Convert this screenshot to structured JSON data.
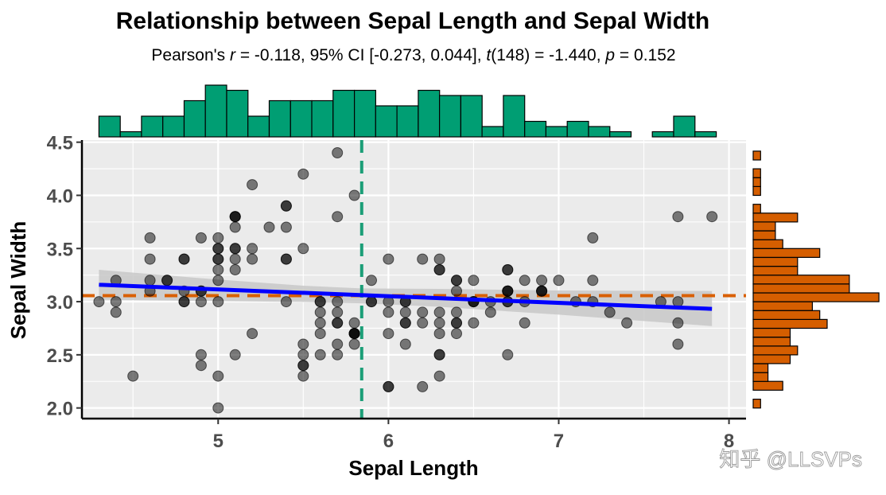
{
  "watermark": "知乎 @LLSVPs",
  "colors": {
    "panel": "#ebebeb",
    "grid": "#ffffff",
    "points": "#000000",
    "regression_line": "#0000ff",
    "confidence_band": "#c8c8c8",
    "mean_x_line": "#1b9e77",
    "mean_y_line": "#d95f02",
    "x_histogram": "#009e73",
    "y_histogram": "#d55e00"
  },
  "chart_data": {
    "type": "scatter",
    "title": "Relationship between Sepal Length and Sepal Width",
    "subtitle_parts": [
      {
        "text": "Pearson's ",
        "italic": false
      },
      {
        "text": "r",
        "italic": true
      },
      {
        "text": " = -0.118, 95% CI [-0.273, 0.044], ",
        "italic": false
      },
      {
        "text": "t",
        "italic": true
      },
      {
        "text": "(148) = -1.440, ",
        "italic": false
      },
      {
        "text": "p",
        "italic": true
      },
      {
        "text": "  = 0.152",
        "italic": false
      }
    ],
    "xlabel": "Sepal Length",
    "ylabel": "Sepal Width",
    "xlim": [
      4.2,
      8.1
    ],
    "ylim": [
      1.9,
      4.52
    ],
    "xticks": [
      5,
      6,
      7,
      8
    ],
    "xtick_labels": [
      "5",
      "6",
      "7",
      "8"
    ],
    "yticks": [
      2.0,
      2.5,
      3.0,
      3.5,
      4.0,
      4.5
    ],
    "ytick_labels": [
      "2.0",
      "2.5",
      "3.0",
      "3.5",
      "4.0",
      "4.5"
    ],
    "grid": true,
    "points": [
      [
        5.1,
        3.5
      ],
      [
        4.9,
        3.0
      ],
      [
        4.7,
        3.2
      ],
      [
        4.6,
        3.1
      ],
      [
        5.0,
        3.6
      ],
      [
        5.4,
        3.9
      ],
      [
        4.6,
        3.4
      ],
      [
        5.0,
        3.4
      ],
      [
        4.4,
        2.9
      ],
      [
        4.9,
        3.1
      ],
      [
        5.4,
        3.7
      ],
      [
        4.8,
        3.4
      ],
      [
        4.8,
        3.0
      ],
      [
        4.3,
        3.0
      ],
      [
        5.8,
        4.0
      ],
      [
        5.7,
        4.4
      ],
      [
        5.4,
        3.9
      ],
      [
        5.1,
        3.5
      ],
      [
        5.7,
        3.8
      ],
      [
        5.1,
        3.8
      ],
      [
        5.4,
        3.4
      ],
      [
        5.1,
        3.7
      ],
      [
        4.6,
        3.6
      ],
      [
        5.1,
        3.3
      ],
      [
        4.8,
        3.4
      ],
      [
        5.0,
        3.0
      ],
      [
        5.0,
        3.4
      ],
      [
        5.2,
        3.5
      ],
      [
        5.2,
        3.4
      ],
      [
        4.7,
        3.2
      ],
      [
        4.8,
        3.1
      ],
      [
        5.4,
        3.4
      ],
      [
        5.2,
        4.1
      ],
      [
        5.5,
        4.2
      ],
      [
        4.9,
        3.1
      ],
      [
        5.0,
        3.2
      ],
      [
        5.5,
        3.5
      ],
      [
        4.9,
        3.6
      ],
      [
        4.4,
        3.0
      ],
      [
        5.1,
        3.4
      ],
      [
        5.0,
        3.5
      ],
      [
        4.5,
        2.3
      ],
      [
        4.4,
        3.2
      ],
      [
        5.0,
        3.5
      ],
      [
        5.1,
        3.8
      ],
      [
        4.8,
        3.0
      ],
      [
        5.1,
        3.8
      ],
      [
        4.6,
        3.2
      ],
      [
        5.3,
        3.7
      ],
      [
        5.0,
        3.3
      ],
      [
        7.0,
        3.2
      ],
      [
        6.4,
        3.2
      ],
      [
        6.9,
        3.1
      ],
      [
        5.5,
        2.3
      ],
      [
        6.5,
        2.8
      ],
      [
        5.7,
        2.8
      ],
      [
        6.3,
        3.3
      ],
      [
        4.9,
        2.4
      ],
      [
        6.6,
        2.9
      ],
      [
        5.2,
        2.7
      ],
      [
        5.0,
        2.0
      ],
      [
        5.9,
        3.0
      ],
      [
        6.0,
        2.2
      ],
      [
        6.1,
        2.9
      ],
      [
        5.6,
        2.9
      ],
      [
        6.7,
        3.1
      ],
      [
        5.6,
        3.0
      ],
      [
        5.8,
        2.7
      ],
      [
        6.2,
        2.2
      ],
      [
        5.6,
        2.5
      ],
      [
        5.9,
        3.2
      ],
      [
        6.1,
        2.8
      ],
      [
        6.3,
        2.5
      ],
      [
        6.1,
        2.8
      ],
      [
        6.4,
        2.9
      ],
      [
        6.6,
        3.0
      ],
      [
        6.8,
        2.8
      ],
      [
        6.7,
        3.0
      ],
      [
        6.0,
        2.9
      ],
      [
        5.7,
        2.6
      ],
      [
        5.5,
        2.4
      ],
      [
        5.5,
        2.4
      ],
      [
        5.8,
        2.7
      ],
      [
        6.0,
        2.7
      ],
      [
        5.4,
        3.0
      ],
      [
        6.0,
        3.4
      ],
      [
        6.7,
        3.1
      ],
      [
        6.3,
        2.3
      ],
      [
        5.6,
        3.0
      ],
      [
        5.5,
        2.5
      ],
      [
        5.5,
        2.6
      ],
      [
        6.1,
        3.0
      ],
      [
        5.8,
        2.6
      ],
      [
        5.0,
        2.3
      ],
      [
        5.6,
        2.7
      ],
      [
        5.7,
        3.0
      ],
      [
        5.7,
        2.9
      ],
      [
        6.2,
        2.9
      ],
      [
        5.1,
        2.5
      ],
      [
        5.7,
        2.8
      ],
      [
        6.3,
        3.3
      ],
      [
        5.8,
        2.7
      ],
      [
        7.1,
        3.0
      ],
      [
        6.3,
        2.9
      ],
      [
        6.5,
        3.0
      ],
      [
        7.6,
        3.0
      ],
      [
        4.9,
        2.5
      ],
      [
        7.3,
        2.9
      ],
      [
        6.7,
        2.5
      ],
      [
        7.2,
        3.6
      ],
      [
        6.5,
        3.2
      ],
      [
        6.4,
        2.7
      ],
      [
        6.8,
        3.0
      ],
      [
        5.7,
        2.5
      ],
      [
        5.8,
        2.8
      ],
      [
        6.4,
        3.2
      ],
      [
        6.5,
        3.0
      ],
      [
        7.7,
        3.8
      ],
      [
        7.7,
        2.6
      ],
      [
        6.0,
        2.2
      ],
      [
        6.9,
        3.2
      ],
      [
        5.6,
        2.8
      ],
      [
        7.7,
        2.8
      ],
      [
        6.3,
        2.7
      ],
      [
        6.7,
        3.3
      ],
      [
        7.2,
        3.2
      ],
      [
        6.2,
        2.8
      ],
      [
        6.1,
        3.0
      ],
      [
        6.4,
        2.8
      ],
      [
        7.2,
        3.0
      ],
      [
        7.4,
        2.8
      ],
      [
        7.9,
        3.8
      ],
      [
        6.4,
        2.8
      ],
      [
        6.3,
        2.8
      ],
      [
        6.1,
        2.6
      ],
      [
        7.7,
        3.0
      ],
      [
        6.3,
        3.4
      ],
      [
        6.4,
        3.1
      ],
      [
        6.0,
        3.0
      ],
      [
        6.9,
        3.1
      ],
      [
        6.7,
        3.1
      ],
      [
        6.9,
        3.1
      ],
      [
        5.8,
        2.7
      ],
      [
        6.8,
        3.2
      ],
      [
        6.7,
        3.3
      ],
      [
        6.7,
        3.0
      ],
      [
        6.3,
        2.5
      ],
      [
        6.5,
        3.0
      ],
      [
        6.2,
        3.4
      ],
      [
        5.9,
        3.0
      ]
    ],
    "regression": {
      "x": [
        4.3,
        7.9
      ],
      "y": [
        3.159,
        2.932
      ]
    },
    "confidence_band": {
      "x": [
        4.3,
        5.0,
        5.5,
        5.84,
        6.3,
        7.0,
        7.9
      ],
      "lower": [
        3.018,
        3.005,
        2.997,
        2.985,
        2.952,
        2.878,
        2.77
      ],
      "upper": [
        3.3,
        3.208,
        3.15,
        3.125,
        3.12,
        3.105,
        3.1
      ]
    },
    "mean_x": 5.843,
    "mean_y": 3.057,
    "x_histogram": {
      "bin_width": 0.125,
      "bin_starts": [
        4.3,
        4.425,
        4.55,
        4.675,
        4.8,
        4.925,
        5.05,
        5.175,
        5.3,
        5.425,
        5.55,
        5.675,
        5.8,
        5.925,
        6.05,
        6.175,
        6.3,
        6.425,
        6.55,
        6.675,
        6.8,
        6.925,
        7.05,
        7.175,
        7.3,
        7.425,
        7.55,
        7.675,
        7.8
      ],
      "counts": [
        4,
        1,
        4,
        4,
        7,
        10,
        9,
        4,
        7,
        7,
        7,
        9,
        9,
        6,
        6,
        9,
        8,
        8,
        2,
        8,
        3,
        2,
        3,
        2,
        1,
        0,
        1,
        4,
        1
      ]
    },
    "y_histogram": {
      "bin_width": 0.083,
      "bin_starts": [
        2.0,
        2.083,
        2.167,
        2.25,
        2.333,
        2.417,
        2.5,
        2.583,
        2.667,
        2.75,
        2.833,
        2.917,
        3.0,
        3.083,
        3.167,
        3.25,
        3.333,
        3.417,
        3.5,
        3.583,
        3.667,
        3.75,
        3.833,
        3.917,
        4.0,
        4.083,
        4.167,
        4.25,
        4.333
      ],
      "counts": [
        1,
        0,
        4,
        2,
        2,
        5,
        6,
        5,
        5,
        10,
        9,
        8,
        17,
        13,
        13,
        6,
        6,
        9,
        4,
        3,
        3,
        6,
        1,
        0,
        1,
        1,
        1,
        0,
        1
      ]
    }
  }
}
